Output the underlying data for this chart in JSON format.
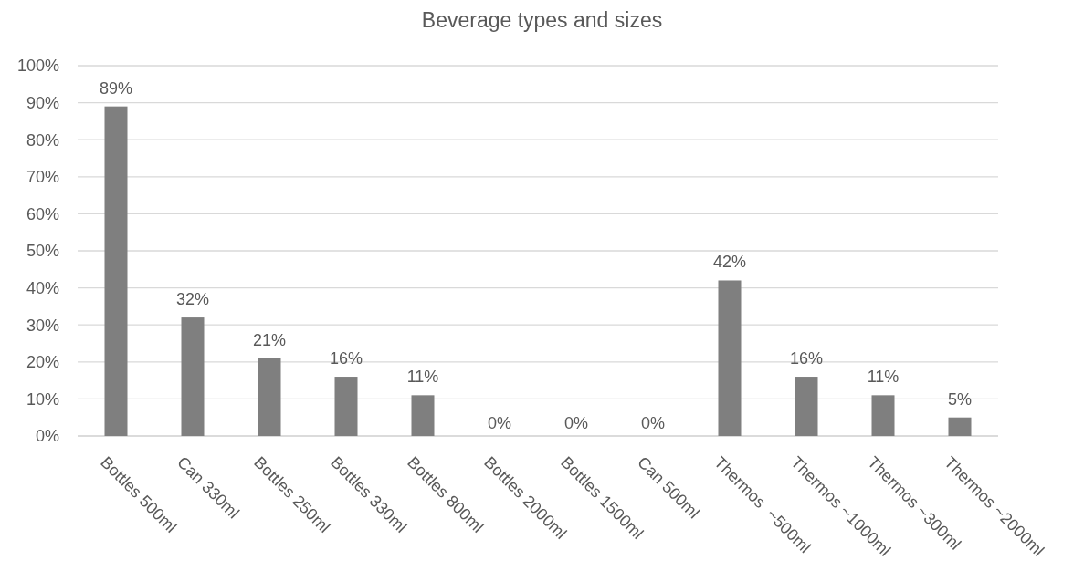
{
  "chart_data": {
    "type": "bar",
    "title": "Beverage types and sizes",
    "categories": [
      "Bottles 500ml",
      "Can 330ml",
      "Bottles 250ml",
      "Bottles 330ml",
      "Bottles 800ml",
      "Bottles 2000ml",
      "Bottles 1500ml",
      "Can 500ml",
      "Thermos  ~500ml",
      "Thermos ~1000ml",
      "Thermos ~300ml",
      "Thermos ~2000ml"
    ],
    "values": [
      89,
      32,
      21,
      16,
      11,
      0,
      0,
      0,
      42,
      16,
      11,
      5
    ],
    "value_labels": [
      "89%",
      "32%",
      "21%",
      "16%",
      "11%",
      "0%",
      "0%",
      "0%",
      "42%",
      "16%",
      "11%",
      "5%"
    ],
    "color": "#7f7f7f",
    "ylim": [
      0,
      100
    ],
    "yticks": [
      {
        "value": 0,
        "label": "0%"
      },
      {
        "value": 10,
        "label": "10%"
      },
      {
        "value": 20,
        "label": "20%"
      },
      {
        "value": 30,
        "label": "30%"
      },
      {
        "value": 40,
        "label": "40%"
      },
      {
        "value": 50,
        "label": "50%"
      },
      {
        "value": 60,
        "label": "60%"
      },
      {
        "value": 70,
        "label": "70%"
      },
      {
        "value": 80,
        "label": "80%"
      },
      {
        "value": 90,
        "label": "90%"
      },
      {
        "value": 100,
        "label": "100%"
      }
    ],
    "grid": "y"
  }
}
